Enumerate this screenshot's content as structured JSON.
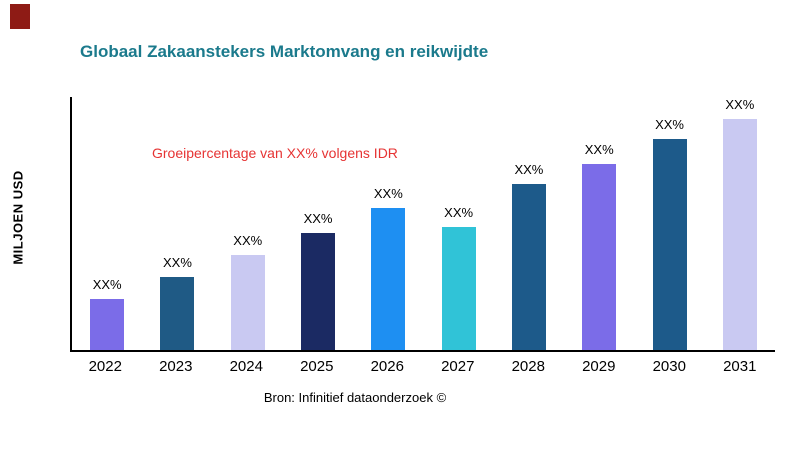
{
  "header": {
    "corner_color": "#8e1b15"
  },
  "chart_data": {
    "type": "bar",
    "title": "Globaal Zakaanstekers Marktomvang en reikwijdte",
    "title_color": "#1b7a8c",
    "ylabel": "MILJOEN USD",
    "xlabel": "",
    "categories": [
      "2022",
      "2023",
      "2024",
      "2025",
      "2026",
      "2027",
      "2028",
      "2029",
      "2030",
      "2031"
    ],
    "values": [
      50,
      72,
      94,
      116,
      140,
      122,
      164,
      184,
      209,
      232
    ],
    "labels": [
      "XX%",
      "XX%",
      "XX%",
      "XX%",
      "XX%",
      "XX%",
      "XX%",
      "XX%",
      "XX%",
      "XX%"
    ],
    "bar_colors": [
      "#7b6ce8",
      "#1f5a85",
      "#c9c9f2",
      "#1b2a63",
      "#1e8ff2",
      "#30c3d7",
      "#1d5a8a",
      "#7b6ce8",
      "#1d5a8a",
      "#c9c9f2"
    ],
    "annotation": "Groeipercentage van XX% volgens IDR",
    "annotation_color": "#e63333",
    "ylim": [
      0,
      250
    ],
    "grid": false,
    "legend": "none"
  },
  "footer": {
    "source": "Bron: Infinitief dataonderzoek ©"
  }
}
